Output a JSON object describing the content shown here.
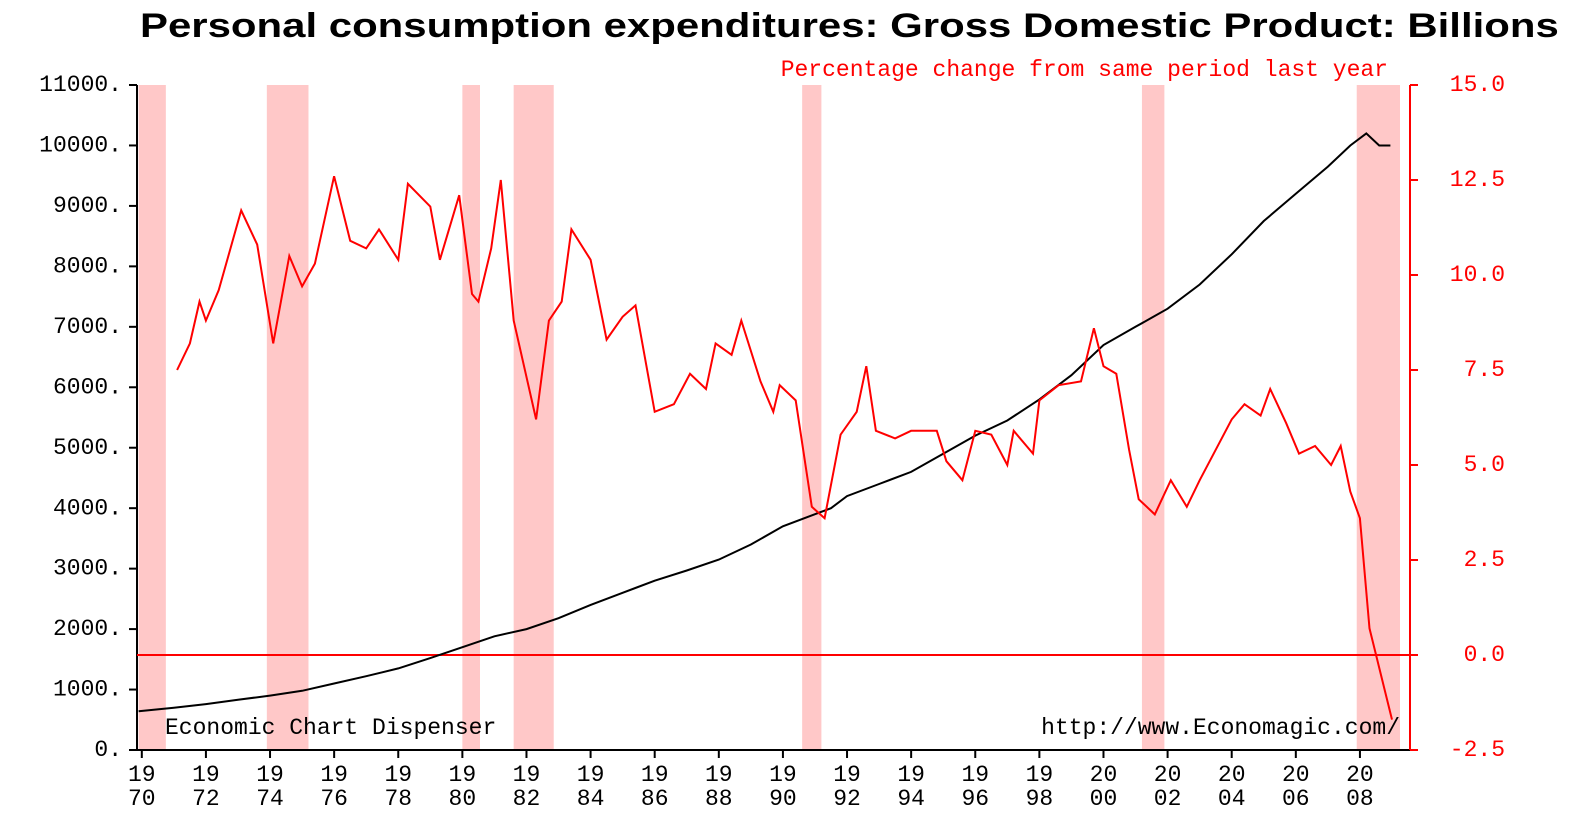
{
  "chart_data": {
    "type": "line",
    "title": "Personal consumption expenditures: Gross Domestic Product: Billions of",
    "subtitle": "Percentage change from same period last year",
    "annotations": [
      "Economic Chart Dispenser",
      "http://www.Economagic.com/"
    ],
    "xlim": [
      1969.85,
      2009.25
    ],
    "xticks": [
      1970,
      1972,
      1974,
      1976,
      1978,
      1980,
      1982,
      1984,
      1986,
      1988,
      1990,
      1992,
      1994,
      1996,
      1998,
      2000,
      2002,
      2004,
      2006,
      2008
    ],
    "ylim": [
      0,
      11000
    ],
    "yticks": [
      {
        "value": 0,
        "label": "0."
      },
      {
        "value": 1000,
        "label": "1000."
      },
      {
        "value": 2000,
        "label": "2000."
      },
      {
        "value": 3000,
        "label": "3000."
      },
      {
        "value": 4000,
        "label": "4000."
      },
      {
        "value": 5000,
        "label": "5000."
      },
      {
        "value": 6000,
        "label": "6000."
      },
      {
        "value": 7000,
        "label": "7000."
      },
      {
        "value": 8000,
        "label": "8000."
      },
      {
        "value": 9000,
        "label": "9000."
      },
      {
        "value": 10000,
        "label": "10000."
      },
      {
        "value": 11000,
        "label": "11000."
      }
    ],
    "y2lim": [
      -2.5,
      15
    ],
    "y2ticks": [
      {
        "value": -2.5,
        "label": "-2.5"
      },
      {
        "value": 0,
        "label": "0.0"
      },
      {
        "value": 2.5,
        "label": "2.5"
      },
      {
        "value": 5,
        "label": "5.0"
      },
      {
        "value": 7.5,
        "label": "7.5"
      },
      {
        "value": 10,
        "label": "10.0"
      },
      {
        "value": 12.5,
        "label": "12.5"
      },
      {
        "value": 15,
        "label": "15.0"
      }
    ],
    "shaded_periods": [
      [
        1969.9,
        1970.75
      ],
      [
        1973.9,
        1975.2
      ],
      [
        1980.0,
        1980.55
      ],
      [
        1981.6,
        1982.85
      ],
      [
        1990.6,
        1991.2
      ],
      [
        2001.2,
        2001.9
      ],
      [
        2007.9,
        2009.25
      ]
    ],
    "shade_color": "#ffc8c8",
    "series": [
      {
        "color": "#000000",
        "x": [
          1969.9,
          1971,
          1972,
          1973,
          1974,
          1975,
          1976,
          1977,
          1978,
          1979,
          1980,
          1981,
          1982,
          1983,
          1984,
          1985,
          1986,
          1987,
          1988,
          1989,
          1990,
          1991,
          1991.5,
          1992,
          1993,
          1994,
          1995,
          1996,
          1997,
          1998,
          1999,
          2000,
          2001,
          2001.5,
          2002,
          2003,
          2004,
          2005,
          2006,
          2007,
          2007.7,
          2008.2,
          2008.6,
          2008.95
        ],
        "values": [
          640,
          700,
          760,
          830,
          900,
          980,
          1100,
          1220,
          1350,
          1520,
          1700,
          1880,
          2000,
          2180,
          2400,
          2600,
          2800,
          2970,
          3150,
          3400,
          3700,
          3900,
          4000,
          4200,
          4400,
          4600,
          4900,
          5200,
          5450,
          5800,
          6200,
          6700,
          7000,
          7150,
          7300,
          7700,
          8200,
          8750,
          9200,
          9650,
          10000,
          10200,
          10000,
          10000
        ]
      },
      {
        "color": "#ff0000",
        "axis": "y2",
        "x": [
          1971.1,
          1971.5,
          1971.8,
          1972.0,
          1972.4,
          1973.1,
          1973.6,
          1974.1,
          1974.6,
          1975.0,
          1975.4,
          1976.0,
          1976.5,
          1977.0,
          1977.4,
          1978.0,
          1978.3,
          1979.0,
          1979.3,
          1979.9,
          1980.3,
          1980.5,
          1980.9,
          1981.2,
          1981.6,
          1982.3,
          1982.7,
          1983.1,
          1983.4,
          1984.0,
          1984.5,
          1985.0,
          1985.4,
          1986.0,
          1986.6,
          1987.1,
          1987.6,
          1987.9,
          1988.4,
          1988.7,
          1989.3,
          1989.7,
          1989.9,
          1990.4,
          1990.9,
          1991.3,
          1991.8,
          1992.3,
          1992.6,
          1992.9,
          1993.5,
          1994.0,
          1994.8,
          1995.1,
          1995.6,
          1996.0,
          1996.5,
          1997.0,
          1997.2,
          1997.8,
          1998.0,
          1998.6,
          1999.3,
          1999.7,
          2000.0,
          2000.4,
          2000.8,
          2001.1,
          2001.6,
          2002.1,
          2002.6,
          2003.0,
          2003.5,
          2004.0,
          2004.4,
          2004.9,
          2005.2,
          2005.7,
          2006.1,
          2006.6,
          2007.1,
          2007.4,
          2007.7,
          2008.0,
          2008.3,
          2009.0
        ],
        "values": [
          7.5,
          8.2,
          9.3,
          8.8,
          9.6,
          11.7,
          10.8,
          8.2,
          10.5,
          9.7,
          10.3,
          12.6,
          10.9,
          10.7,
          11.2,
          10.4,
          12.4,
          11.8,
          10.4,
          12.1,
          9.5,
          9.3,
          10.7,
          12.5,
          8.8,
          6.2,
          8.8,
          9.3,
          11.2,
          10.4,
          8.3,
          8.9,
          9.2,
          6.4,
          6.6,
          7.4,
          7.0,
          8.2,
          7.9,
          8.8,
          7.2,
          6.4,
          7.1,
          6.7,
          3.9,
          3.6,
          5.8,
          6.4,
          7.6,
          5.9,
          5.7,
          5.9,
          5.9,
          5.1,
          4.6,
          5.9,
          5.8,
          5.0,
          5.9,
          5.3,
          6.7,
          7.1,
          7.2,
          8.6,
          7.6,
          7.4,
          5.4,
          4.1,
          3.7,
          4.6,
          3.9,
          4.6,
          5.4,
          6.2,
          6.6,
          6.3,
          7.0,
          6.1,
          5.3,
          5.5,
          5.0,
          5.5,
          4.3,
          3.6,
          0.7,
          -1.7
        ]
      }
    ]
  }
}
